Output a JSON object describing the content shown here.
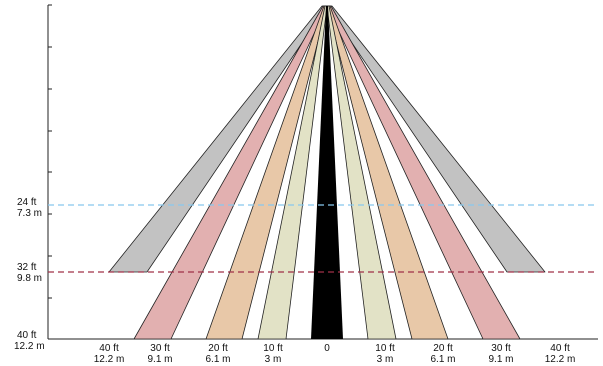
{
  "y_axis_labels": [
    {
      "ft": "24 ft",
      "m": "7.3 m"
    },
    {
      "ft": "32 ft",
      "m": "9.8 m"
    },
    {
      "ft": "40 ft",
      "m": "12.2 m"
    }
  ],
  "x_axis_labels": [
    {
      "ft": "40 ft",
      "m": "12.2 m"
    },
    {
      "ft": "30 ft",
      "m": "9.1 m"
    },
    {
      "ft": "20 ft",
      "m": "6.1 m"
    },
    {
      "ft": "10 ft",
      "m": "3 m"
    },
    {
      "ft": "0",
      "m": ""
    },
    {
      "ft": "10 ft",
      "m": "3 m"
    },
    {
      "ft": "20 ft",
      "m": "6.1 m"
    },
    {
      "ft": "30 ft",
      "m": "9.1 m"
    },
    {
      "ft": "40 ft",
      "m": "12.2 m"
    }
  ],
  "colors": {
    "zone_center": "#000000",
    "zone_10ft": "#e2e2c6",
    "zone_20ft": "#e8c8a8",
    "zone_30ft": "#e2b0b0",
    "zone_40ft": "#c2c2c2",
    "line_24ft": "#88c8ee",
    "line_32ft": "#a03048"
  }
}
